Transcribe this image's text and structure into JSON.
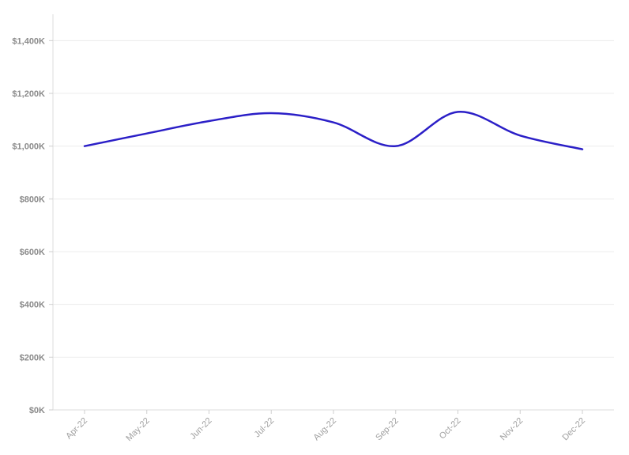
{
  "chart_data": {
    "type": "line",
    "categories": [
      "Apr-22",
      "May-22",
      "Jun-22",
      "Jul-22",
      "Aug-22",
      "Sep-22",
      "Oct-22",
      "Nov-22",
      "Dec-22"
    ],
    "series": [
      {
        "values": [
          1000000,
          1048000,
          1095000,
          1125000,
          1090000,
          1000000,
          1130000,
          1040000,
          988000
        ],
        "color": "#2b1fc7"
      }
    ],
    "y_ticks": [
      "$0K",
      "$200K",
      "$400K",
      "$600K",
      "$800K",
      "$1,000K",
      "$1,200K",
      "$1,400K"
    ],
    "ylim": [
      0,
      1500000
    ],
    "title": "",
    "xlabel": "",
    "ylabel": "",
    "grid": true,
    "legend": "none"
  }
}
